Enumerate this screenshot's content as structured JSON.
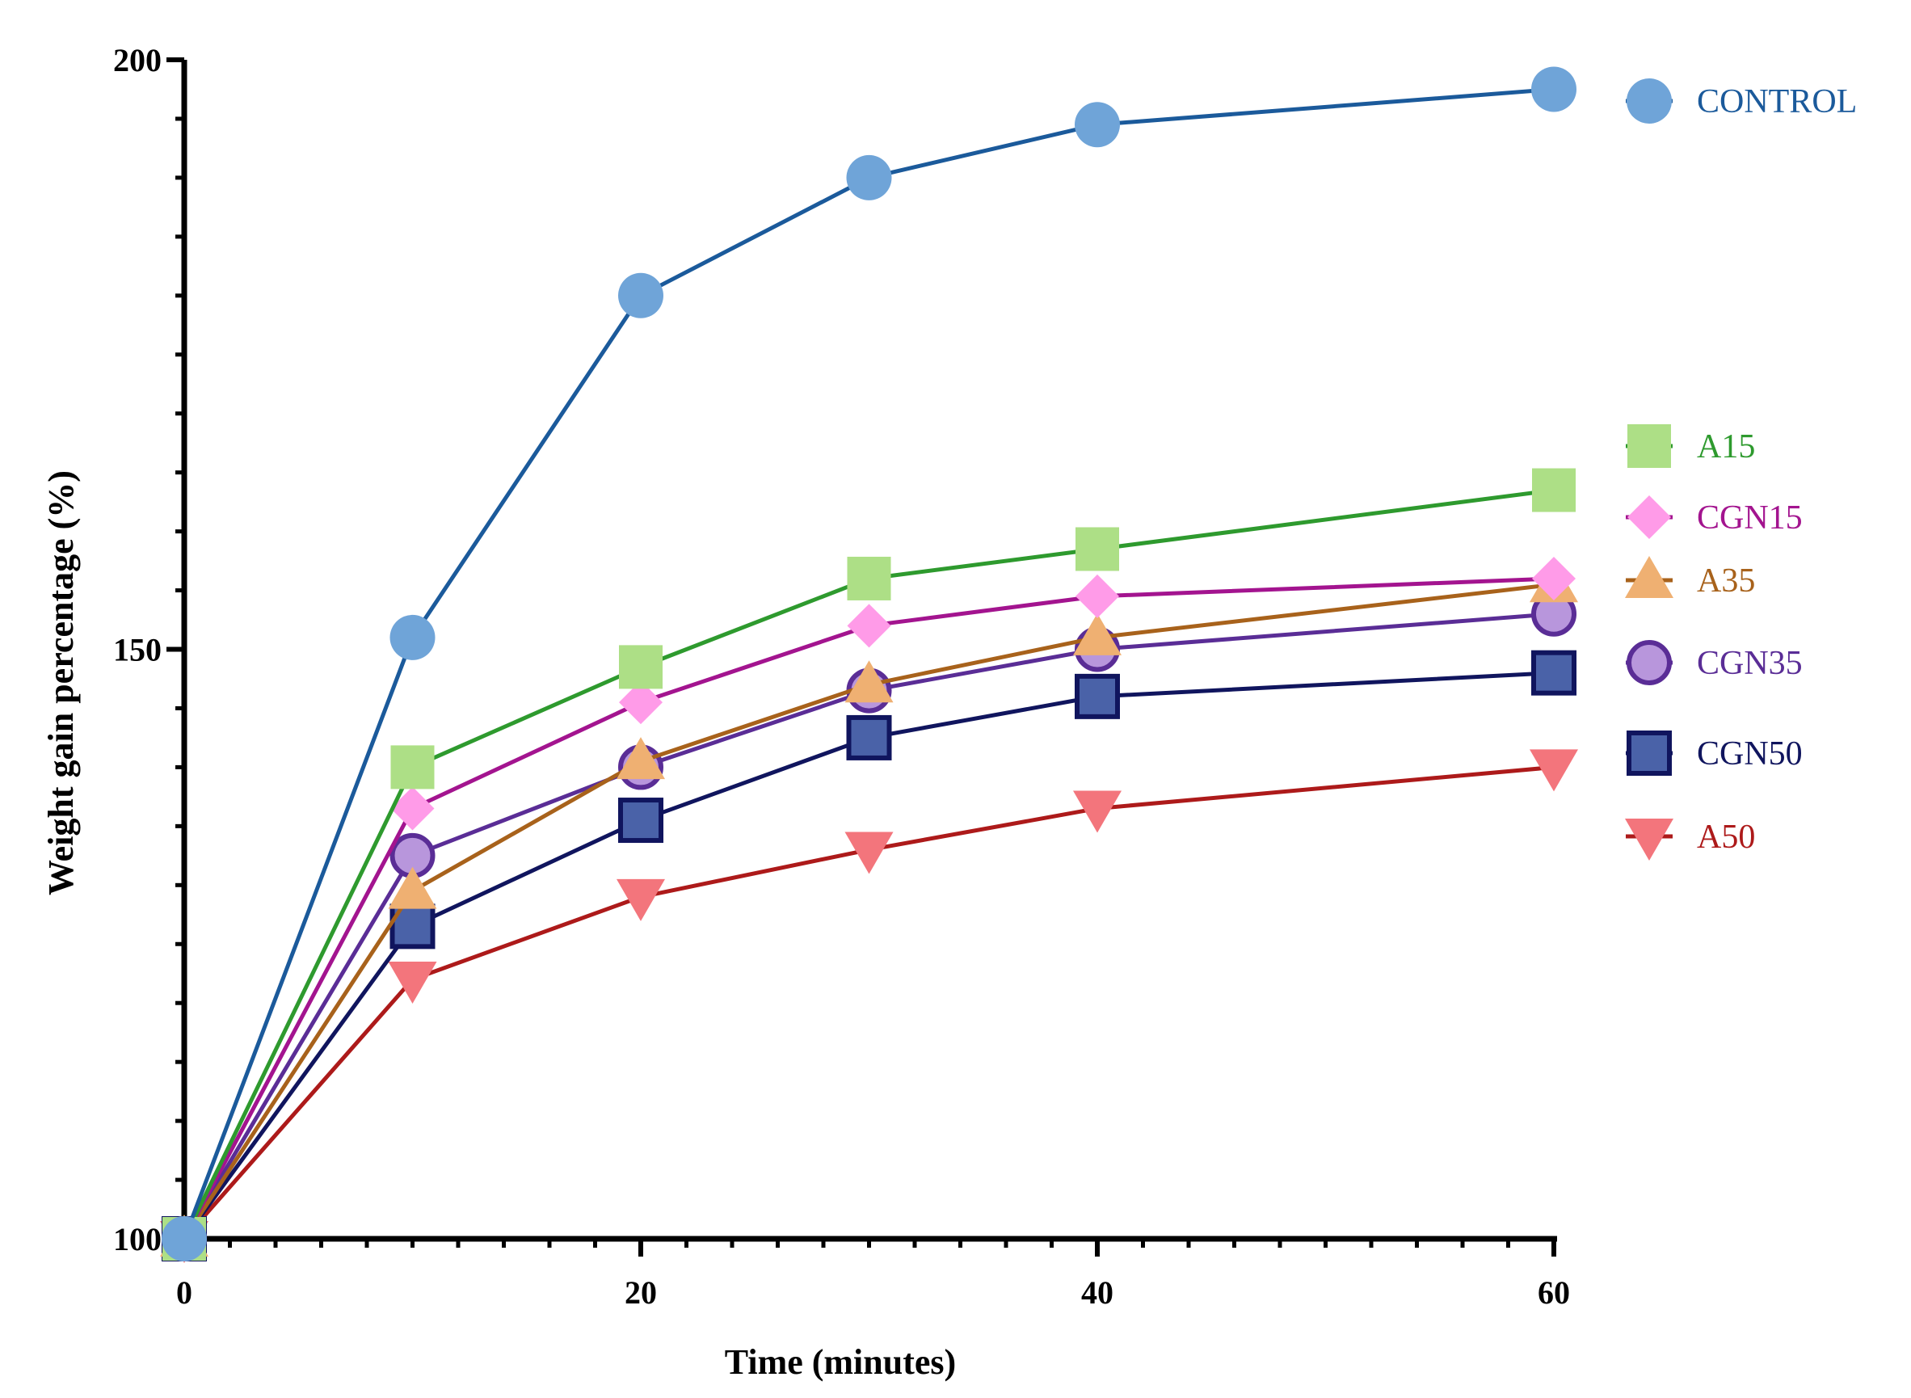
{
  "chart_data": {
    "type": "line",
    "title": "",
    "xlabel": "Time (minutes)",
    "ylabel": "Weight gain percentage (%)",
    "xlim": [
      0,
      60
    ],
    "ylim": [
      100,
      200
    ],
    "xticks": [
      0,
      20,
      40,
      60
    ],
    "yticks": [
      100,
      150,
      200
    ],
    "x": [
      0,
      10,
      20,
      30,
      40,
      60
    ],
    "legend_position": "right",
    "series": [
      {
        "name": "CONTROL",
        "marker": "circle",
        "line_color": "#1b5a9b",
        "marker_color": "#6fa4d8",
        "text_color": "#1b5a9b",
        "values": [
          100,
          151,
          180,
          190,
          194.5,
          197.5
        ]
      },
      {
        "name": "A15",
        "marker": "square",
        "line_color": "#2e9a2e",
        "marker_color": "#addf86",
        "text_color": "#2e9a2e",
        "values": [
          100,
          140,
          148.5,
          156,
          158.5,
          163.5
        ]
      },
      {
        "name": "CGN15",
        "marker": "diamond",
        "line_color": "#a3148f",
        "marker_color": "#ff9be8",
        "text_color": "#a3148f",
        "values": [
          100,
          136.5,
          145.5,
          152,
          154.5,
          156
        ]
      },
      {
        "name": "A35",
        "marker": "triangle-up",
        "line_color": "#a8621b",
        "marker_color": "#efb072",
        "text_color": "#a8621b",
        "values": [
          100,
          129.5,
          140.5,
          147,
          151,
          155.5
        ]
      },
      {
        "name": "CGN35",
        "marker": "circle-outline",
        "line_color": "#5a2d96",
        "marker_color": "#b896dc",
        "text_color": "#5a2d96",
        "values": [
          100,
          132.5,
          140,
          146.5,
          150,
          153
        ]
      },
      {
        "name": "CGN50",
        "marker": "square-outline",
        "line_color": "#10155e",
        "marker_color": "#4a62a8",
        "text_color": "#10155e",
        "values": [
          100,
          126.5,
          135.5,
          142.5,
          146,
          148
        ]
      },
      {
        "name": "A50",
        "marker": "triangle-down",
        "line_color": "#ad1a1a",
        "marker_color": "#f3757c",
        "text_color": "#ad1a1a",
        "values": [
          100,
          122,
          129,
          133,
          136.5,
          140
        ]
      }
    ]
  }
}
